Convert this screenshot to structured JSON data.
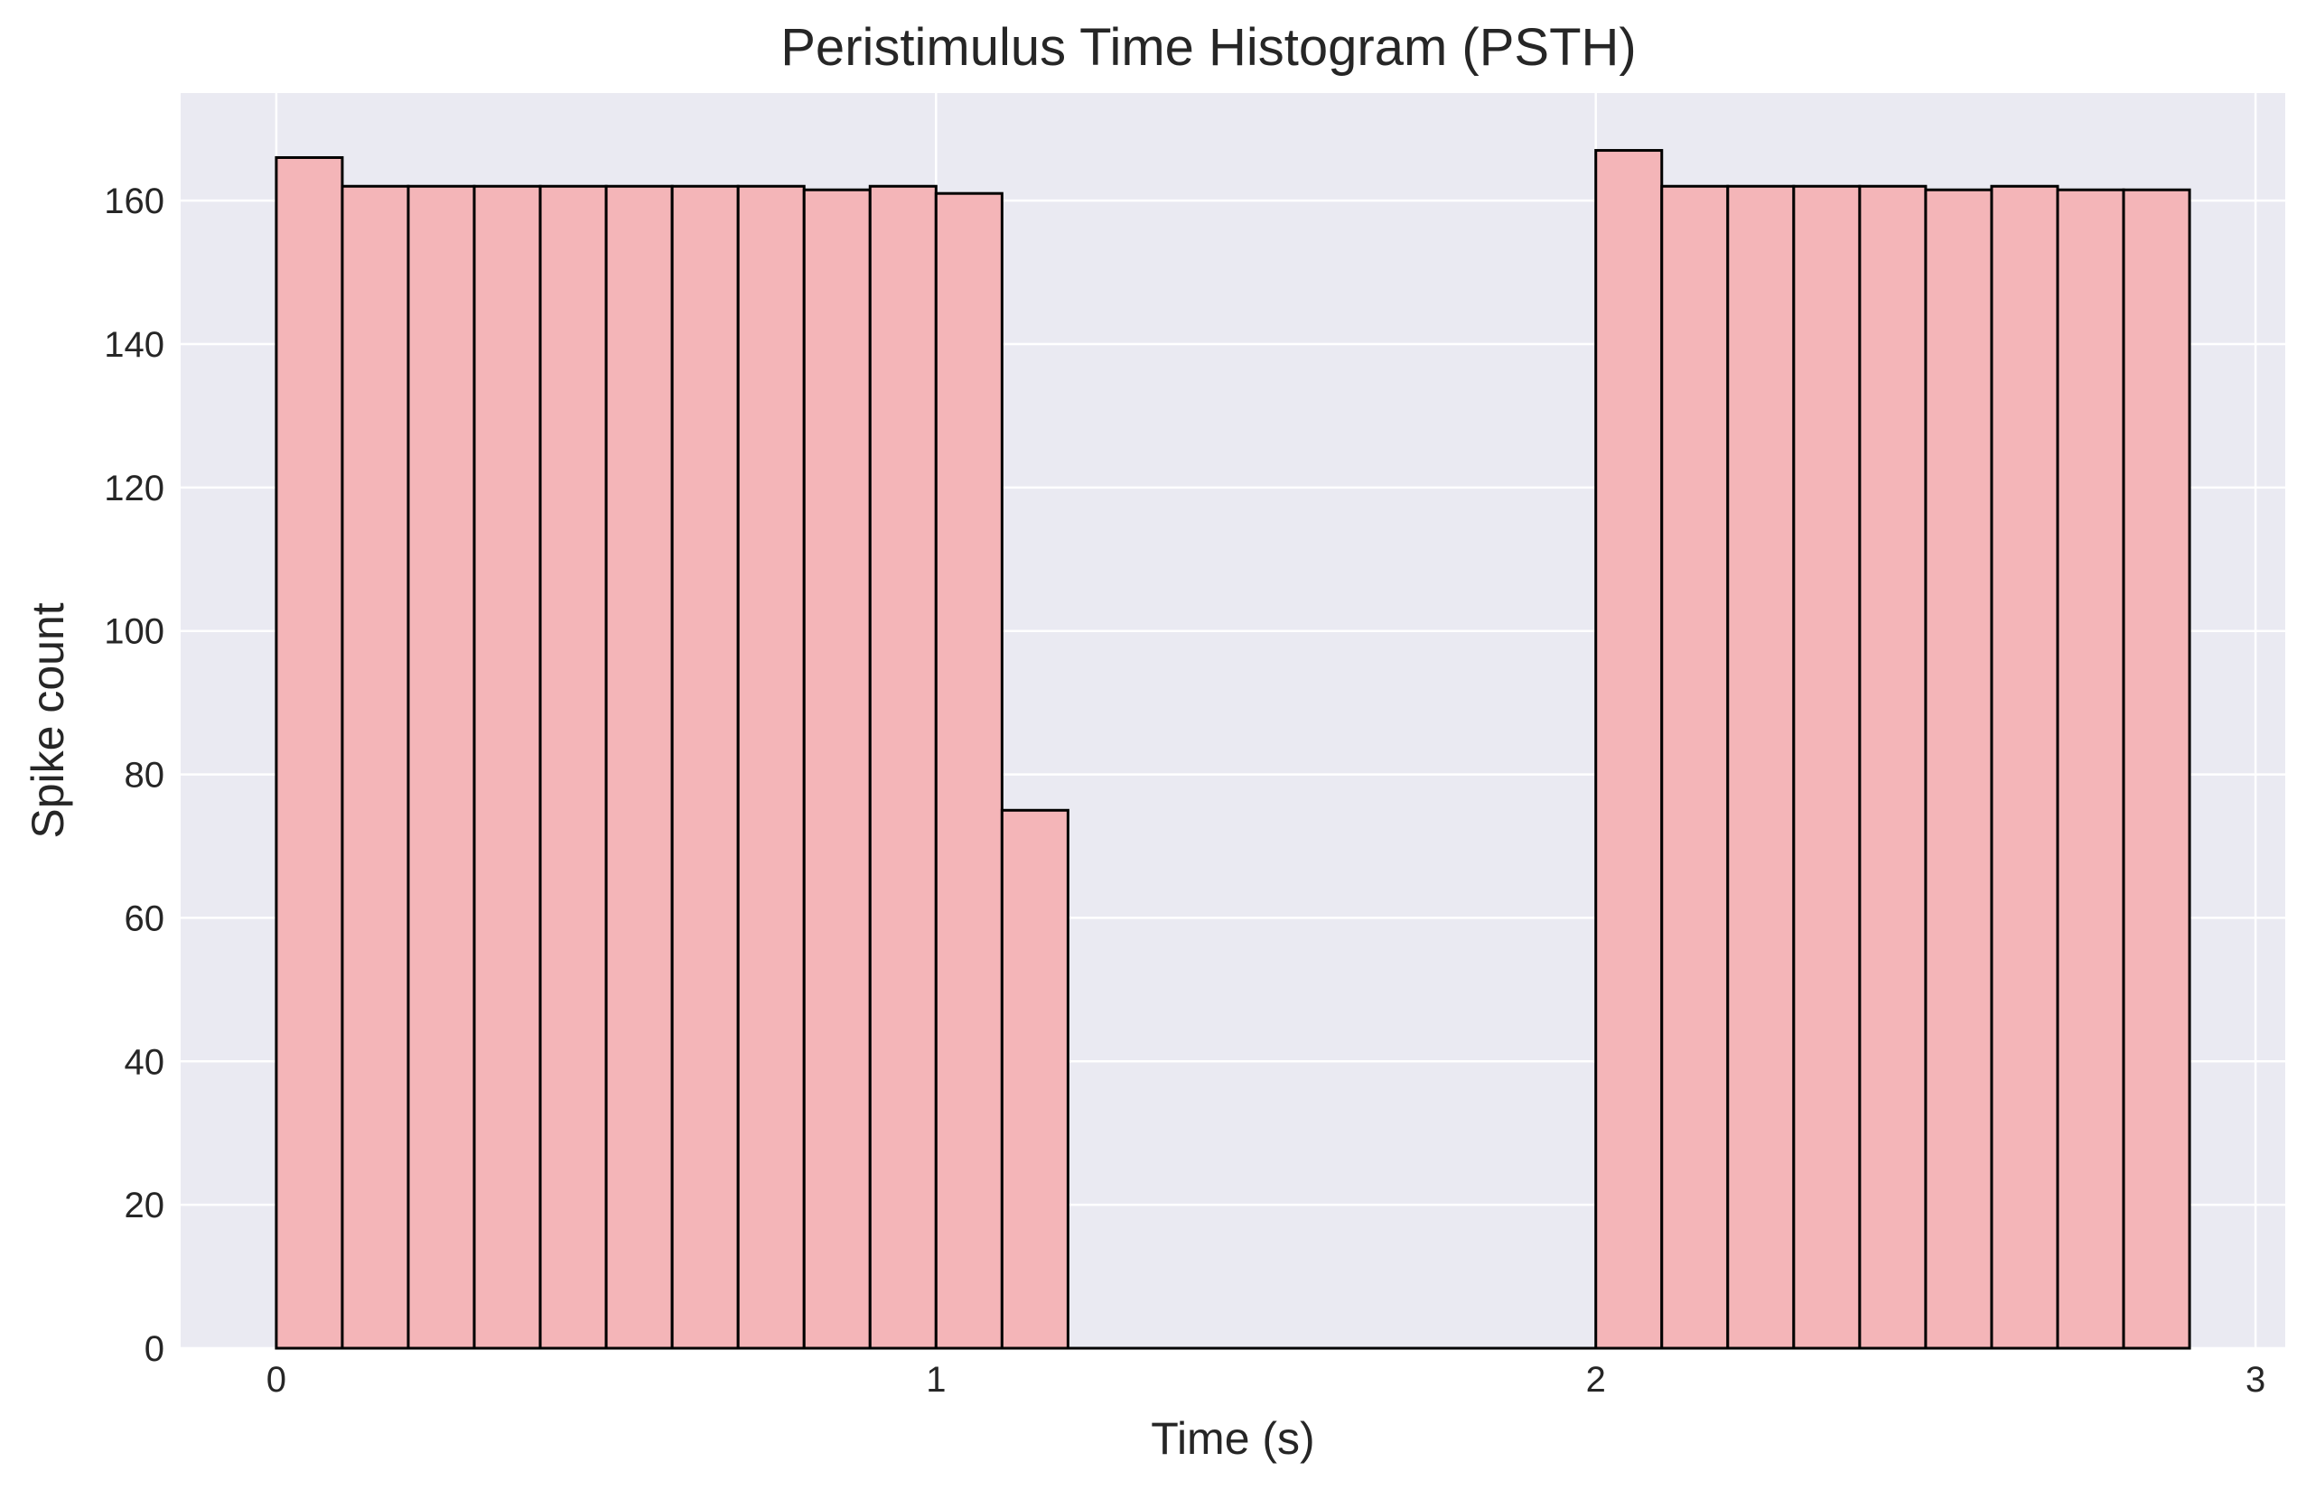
{
  "chart_data": {
    "type": "bar",
    "title": "Peristimulus Time Histogram (PSTH)",
    "xlabel": "Time (s)",
    "ylabel": "Spike count",
    "xlim": [
      -0.145,
      3.045
    ],
    "ylim": [
      0,
      175
    ],
    "x_ticks": [
      0,
      1,
      2,
      3
    ],
    "y_ticks": [
      0,
      20,
      40,
      60,
      80,
      100,
      120,
      140,
      160
    ],
    "grid": true,
    "bin_width": 0.1,
    "bins": [
      {
        "start": 0.0,
        "value": 166
      },
      {
        "start": 0.1,
        "value": 162
      },
      {
        "start": 0.2,
        "value": 162
      },
      {
        "start": 0.3,
        "value": 162
      },
      {
        "start": 0.4,
        "value": 162
      },
      {
        "start": 0.5,
        "value": 162
      },
      {
        "start": 0.6,
        "value": 162
      },
      {
        "start": 0.7,
        "value": 162
      },
      {
        "start": 0.8,
        "value": 161.5
      },
      {
        "start": 0.9,
        "value": 162
      },
      {
        "start": 1.0,
        "value": 161
      },
      {
        "start": 1.1,
        "value": 75
      },
      {
        "start": 1.2,
        "value": 0
      },
      {
        "start": 1.3,
        "value": 0
      },
      {
        "start": 1.4,
        "value": 0
      },
      {
        "start": 1.5,
        "value": 0
      },
      {
        "start": 1.6,
        "value": 0
      },
      {
        "start": 1.7,
        "value": 0
      },
      {
        "start": 1.8,
        "value": 0
      },
      {
        "start": 1.9,
        "value": 0
      },
      {
        "start": 2.0,
        "value": 167
      },
      {
        "start": 2.1,
        "value": 162
      },
      {
        "start": 2.2,
        "value": 162
      },
      {
        "start": 2.3,
        "value": 162
      },
      {
        "start": 2.4,
        "value": 162
      },
      {
        "start": 2.5,
        "value": 161.5
      },
      {
        "start": 2.6,
        "value": 162
      },
      {
        "start": 2.7,
        "value": 161.5
      },
      {
        "start": 2.8,
        "value": 161.5
      }
    ],
    "colors": {
      "bar_fill": "#f4b5b8",
      "bar_edge": "#000000",
      "plot_background": "#eaeaf2",
      "grid": "#ffffff",
      "text": "#262626"
    }
  }
}
